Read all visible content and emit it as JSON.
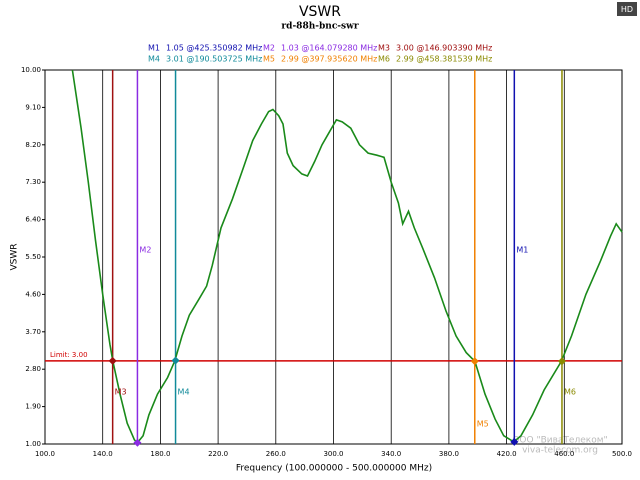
{
  "badge": "HD",
  "watermark": [
    "ООО \"ВиваТелеком\"",
    "viva-telecom.org"
  ],
  "chart_data": {
    "type": "line",
    "title": "VSWR",
    "subtitle": "rd-88h-bnc-swr",
    "x_label": "Frequency (100.000000 - 500.000000 MHz)",
    "y_label": "VSWR",
    "xlim": [
      100,
      500
    ],
    "ylim": [
      1,
      10
    ],
    "xticks": [
      {
        "value": 100,
        "label": "100.0"
      },
      {
        "value": 140,
        "label": "140.0"
      },
      {
        "value": 180,
        "label": "180.0"
      },
      {
        "value": 220,
        "label": "220.0"
      },
      {
        "value": 260,
        "label": "260.0"
      },
      {
        "value": 300,
        "label": "300.0"
      },
      {
        "value": 340,
        "label": "340.0"
      },
      {
        "value": 380,
        "label": "380.0"
      },
      {
        "value": 420,
        "label": "420.0"
      },
      {
        "value": 460,
        "label": "460.0"
      },
      {
        "value": 500,
        "label": "500.0"
      }
    ],
    "yticks": [
      {
        "value": 1,
        "label": "1.00"
      },
      {
        "value": 1.9,
        "label": "1.90"
      },
      {
        "value": 2.8,
        "label": "2.80"
      },
      {
        "value": 3.7,
        "label": "3.70"
      },
      {
        "value": 4.6,
        "label": "4.60"
      },
      {
        "value": 5.5,
        "label": "5.50"
      },
      {
        "value": 6.4,
        "label": "6.40"
      },
      {
        "value": 7.3,
        "label": "7.30"
      },
      {
        "value": 8.2,
        "label": "8.20"
      },
      {
        "value": 9.1,
        "label": "9.10"
      },
      {
        "value": 10,
        "label": "10.00"
      }
    ],
    "grid": true,
    "limit": {
      "value": 3.0,
      "label": "Limit: 3.00",
      "color": "#d00000"
    },
    "series": [
      {
        "color": "#1a8a1a",
        "x": [
          119,
          125,
          130,
          135,
          140,
          145,
          147,
          152,
          157,
          162,
          164,
          168,
          172,
          178,
          185,
          190,
          195,
          200,
          207,
          212,
          216,
          222,
          230,
          238,
          244,
          250,
          255,
          258,
          262,
          265,
          268,
          272,
          278,
          282,
          287,
          292,
          297,
          302,
          306,
          312,
          318,
          324,
          330,
          335,
          340,
          345,
          348,
          352,
          356,
          362,
          370,
          378,
          385,
          392,
          398,
          405,
          412,
          418,
          425,
          430,
          438,
          446,
          458,
          465,
          475,
          485,
          492,
          496,
          500
        ],
        "values": [
          10.0,
          8.6,
          7.3,
          5.9,
          4.6,
          3.4,
          3.0,
          2.2,
          1.5,
          1.1,
          1.03,
          1.2,
          1.7,
          2.2,
          2.6,
          3.0,
          3.6,
          4.1,
          4.5,
          4.8,
          5.3,
          6.2,
          6.9,
          7.7,
          8.3,
          8.7,
          9.0,
          9.05,
          8.9,
          8.7,
          8.0,
          7.7,
          7.5,
          7.45,
          7.8,
          8.2,
          8.5,
          8.8,
          8.75,
          8.6,
          8.2,
          8.0,
          7.95,
          7.9,
          7.3,
          6.8,
          6.3,
          6.6,
          6.2,
          5.7,
          5.0,
          4.2,
          3.6,
          3.2,
          2.99,
          2.2,
          1.6,
          1.2,
          1.05,
          1.2,
          1.7,
          2.3,
          2.99,
          3.6,
          4.6,
          5.4,
          6.0,
          6.3,
          6.1
        ]
      }
    ],
    "markers": [
      {
        "name": "M1",
        "value": 1.05,
        "freq": 425.350982,
        "label": "1.05 @425.350982 MHz",
        "color": "#1010b0"
      },
      {
        "name": "M2",
        "value": 1.03,
        "freq": 164.07928,
        "label": "1.03 @164.079280 MHz",
        "color": "#8a2be2"
      },
      {
        "name": "M3",
        "value": 3.0,
        "freq": 146.90339,
        "label": "3.00 @146.903390 MHz",
        "color": "#a01010"
      },
      {
        "name": "M4",
        "value": 3.01,
        "freq": 190.503725,
        "label": "3.01 @190.503725 MHz",
        "color": "#108a9a"
      },
      {
        "name": "M5",
        "value": 2.99,
        "freq": 397.93562,
        "label": "2.99 @397.935620 MHz",
        "color": "#f08000"
      },
      {
        "name": "M6",
        "value": 2.99,
        "freq": 458.381539,
        "label": "2.99 @458.381539 MHz",
        "color": "#8a8a00"
      }
    ]
  }
}
